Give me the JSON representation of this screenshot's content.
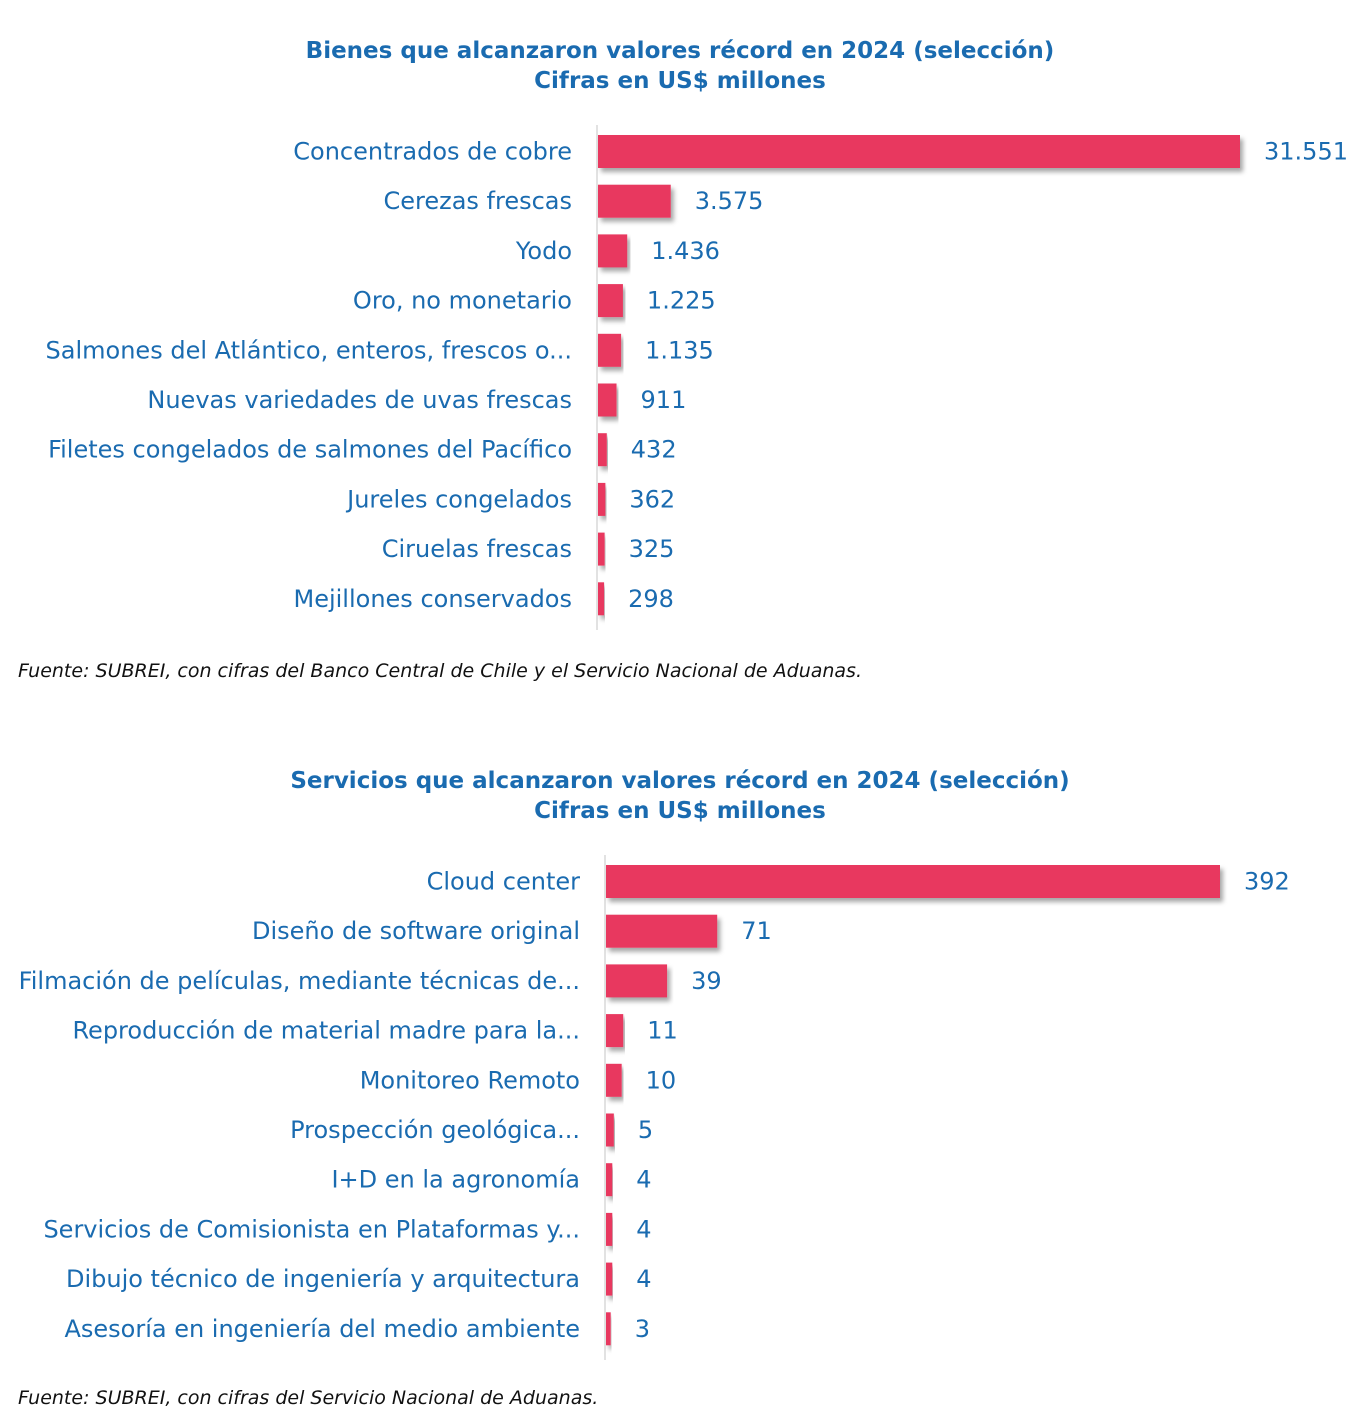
{
  "chart_data": [
    {
      "type": "bar",
      "orientation": "horizontal",
      "title": "Bienes que alcanzaron valores récord en 2024 (selección)",
      "subtitle": "Cifras en US$ millones",
      "categories": [
        "Concentrados de cobre",
        "Cerezas frescas",
        "Yodo",
        "Oro, no monetario",
        "Salmones del Atlántico, enteros, frescos o...",
        "Nuevas variedades de uvas frescas",
        "Filetes congelados de salmones del Pacífico",
        "Jureles congelados",
        "Ciruelas frescas",
        "Mejillones conservados"
      ],
      "values": [
        31551,
        3575,
        1436,
        1225,
        1135,
        911,
        432,
        362,
        325,
        298
      ],
      "value_labels": [
        "31.551",
        "3.575",
        "1.436",
        "1.225",
        "1.135",
        "911",
        "432",
        "362",
        "325",
        "298"
      ],
      "xlabel": "",
      "ylabel": "",
      "xlim": [
        0,
        31551
      ],
      "grid": false,
      "bar_color": "#e8395f",
      "label_color": "#1a6bb0",
      "source": "Fuente: SUBREI, con cifras del Banco Central de Chile y el Servicio Nacional de Aduanas."
    },
    {
      "type": "bar",
      "orientation": "horizontal",
      "title": "Servicios que alcanzaron valores récord en 2024 (selección)",
      "subtitle": "Cifras en US$ millones",
      "categories": [
        "Cloud center",
        "Diseño de software original",
        "Filmación de películas, mediante técnicas de...",
        "Reproducción de material madre para la...",
        "Monitoreo Remoto",
        "Prospección geológica...",
        "I+D en la agronomía",
        "Servicios de Comisionista en Plataformas y...",
        "Dibujo técnico de ingeniería y arquitectura",
        "Asesoría en ingeniería del medio ambiente"
      ],
      "values": [
        392,
        71,
        39,
        11,
        10,
        5,
        4,
        4,
        4,
        3
      ],
      "value_labels": [
        "392",
        "71",
        "39",
        "11",
        "10",
        "5",
        "4",
        "4",
        "4",
        "3"
      ],
      "xlabel": "",
      "ylabel": "",
      "xlim": [
        0,
        392
      ],
      "grid": false,
      "bar_color": "#e8395f",
      "label_color": "#1a6bb0",
      "source": "Fuente: SUBREI, con cifras del Servicio Nacional de Aduanas."
    }
  ]
}
